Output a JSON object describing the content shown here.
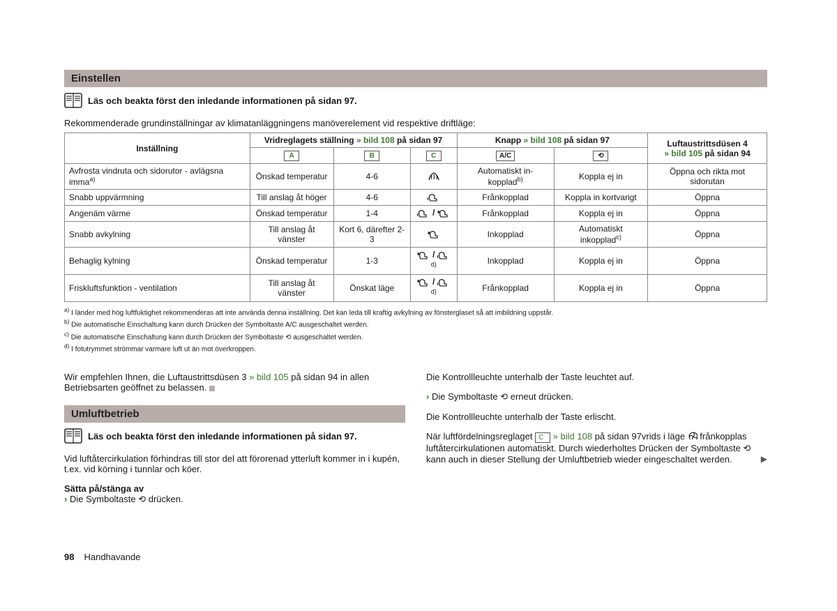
{
  "colors": {
    "header_bg": "#b7acaa",
    "link_green": "#3f7a2f",
    "text": "#1a1a1a",
    "border": "#888888"
  },
  "typography": {
    "body_size": 13,
    "table_size": 12,
    "footnote_size": 10,
    "header_size": 15
  },
  "section1": {
    "title": "Einstellen",
    "note": "Läs och beakta först den inledande informationen på sidan 97.",
    "intro": "Rekommenderade grundinställningar av klimatanläggningens manöverelement vid respektive driftläge:"
  },
  "table": {
    "header": {
      "setting": "Inställning",
      "dial_prefix": "Vridreglagets ställning ",
      "dial_link": "» bild 108",
      "dial_suffix": " på sidan 97",
      "button_prefix": "Knapp ",
      "button_link": "» bild 108",
      "button_suffix": " på sidan 97",
      "vent_line1": "Luftaustrittsdüsen 4",
      "vent_link": "» bild 105",
      "vent_suffix": " på sidan 94",
      "col_a": "A",
      "col_b": "B",
      "col_c": "C",
      "col_ac": "A/C",
      "col_recirc": "⟲"
    },
    "rows": [
      {
        "name_html": "Avfrosta vindruta och sidorutor - avlägsna imma<sup class='sup'>a)</sup>",
        "a": "Önskad temperatur",
        "b": "4-6",
        "c": "defrost",
        "ac_html": "Automatiskt in-kopplad<sup class='sup'>b)</sup>",
        "recirc": "Koppla ej in",
        "vent": "Öppna och rikta mot sidorutan"
      },
      {
        "name_html": "Snabb uppvärmning",
        "a": "Till anslag åt höger",
        "b": "4-6",
        "c": "feet",
        "ac_html": "Frånkopplad",
        "recirc": "Koppla in kortvarigt",
        "vent": "Öppna"
      },
      {
        "name_html": "Angenäm värme",
        "a": "Önskad temperatur",
        "b": "1-4",
        "c": "feet_split",
        "ac_html": "Frånkopplad",
        "recirc": "Koppla ej in",
        "vent": "Öppna"
      },
      {
        "name_html": "Snabb avkylning",
        "a": "Till anslag åt vänster",
        "b": "Kort 6, därefter 2-3",
        "c": "face",
        "ac_html": "Inkopplad",
        "recirc_html": "Automatiskt inkopplad<sup class='sup'>c)</sup>",
        "vent": "Öppna"
      },
      {
        "name_html": "Behaglig kylning",
        "a": "Önskad temperatur",
        "b": "1-3",
        "c": "face_split_d",
        "ac_html": "Inkopplad",
        "recirc": "Koppla ej in",
        "vent": "Öppna"
      },
      {
        "name_html": "Friskluftsfunktion - ventilation",
        "a": "Till anslag åt vänster",
        "b": "Önskat läge",
        "c": "face_split_d",
        "ac_html": "Frånkopplad",
        "recirc": "Koppla ej in",
        "vent": "Öppna"
      }
    ]
  },
  "footnotes": [
    {
      "key": "a)",
      "text": "I länder med hög luftfuktighet rekommenderas att inte använda denna inställning. Det kan leda till kraftig avkylning av fönsterglaset så att imbildning uppstår."
    },
    {
      "key": "b)",
      "text": "Die automatische Einschaltung kann durch Drücken der Symboltaste A/C ausgeschaltet werden."
    },
    {
      "key": "c)",
      "text": "Die automatische Einschaltung kann durch Drücken der Symboltaste ⟲ ausgeschaltet werden."
    },
    {
      "key": "d)",
      "text": "I fotutrymmet strömmar varmare luft ut än mot överkroppen."
    }
  ],
  "left_column": {
    "para1_prefix": "Wir empfehlen Ihnen, die Luftaustrittsdüsen 3 ",
    "para1_link": "» bild 105",
    "para1_suffix": " på sidan 94 in allen Betriebsarten geöffnet zu belassen.",
    "section2_title": "Umluftbetrieb",
    "section2_note": "Läs och beakta först den inledande informationen på sidan 97.",
    "para2": "Vid luftåtercirkulation förhindras till stor del att förorenad ytterluft kommer in i kupén, t.ex. vid körning i tunnlar och köer.",
    "sub": "Sätta på/stänga av",
    "bullet1": "Die Symboltaste ⟲ drücken."
  },
  "right_column": {
    "para1": "Die Kontrollleuchte unterhalb der Taste leuchtet auf.",
    "bullet1": "Die Symboltaste ⟲ erneut drücken.",
    "para2": "Die Kontrollleuchte unterhalb der Taste erlischt.",
    "para3_prefix": "När luftfördelningsreglaget ",
    "para3_key": "C",
    "para3_link": " » bild 108",
    "para3_mid": " på sidan 97vrids i läge ",
    "para3_suffix": " frånkopplas luftåtercirkulationen automatiskt. Durch wiederholtes Drücken der Symboltaste ⟲ kann auch in dieser Stellung der Umluftbetrieb wieder eingeschaltet werden."
  },
  "footer": {
    "page": "98",
    "label": "Handhavande"
  }
}
